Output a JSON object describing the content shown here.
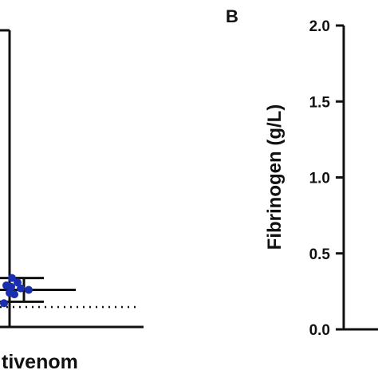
{
  "chart_data": [
    {
      "panel": "",
      "type": "scatter",
      "categories": [
        "tivenom"
      ],
      "points": [
        {
          "category": "tivenom",
          "values": [
            0.8,
            1.1,
            1.15,
            1.25,
            1.3,
            1.35,
            1.4,
            1.5,
            1.65
          ]
        }
      ],
      "error_bars": [
        {
          "category": "tivenom",
          "mean": 1.25,
          "upper": 1.65,
          "lower": 0.85
        }
      ],
      "reference_line": {
        "style": "dotted",
        "value": 0.5
      },
      "point_color": "#1a2fb0",
      "ylim": [
        0,
        10
      ]
    },
    {
      "panel": "B",
      "type": "scatter",
      "ylabel": "Fibrinogen (g/L)",
      "yticks": [
        "0.0",
        "0.5",
        "1.0",
        "1.5",
        "2.0"
      ],
      "ylim": [
        0,
        2.0
      ]
    }
  ]
}
